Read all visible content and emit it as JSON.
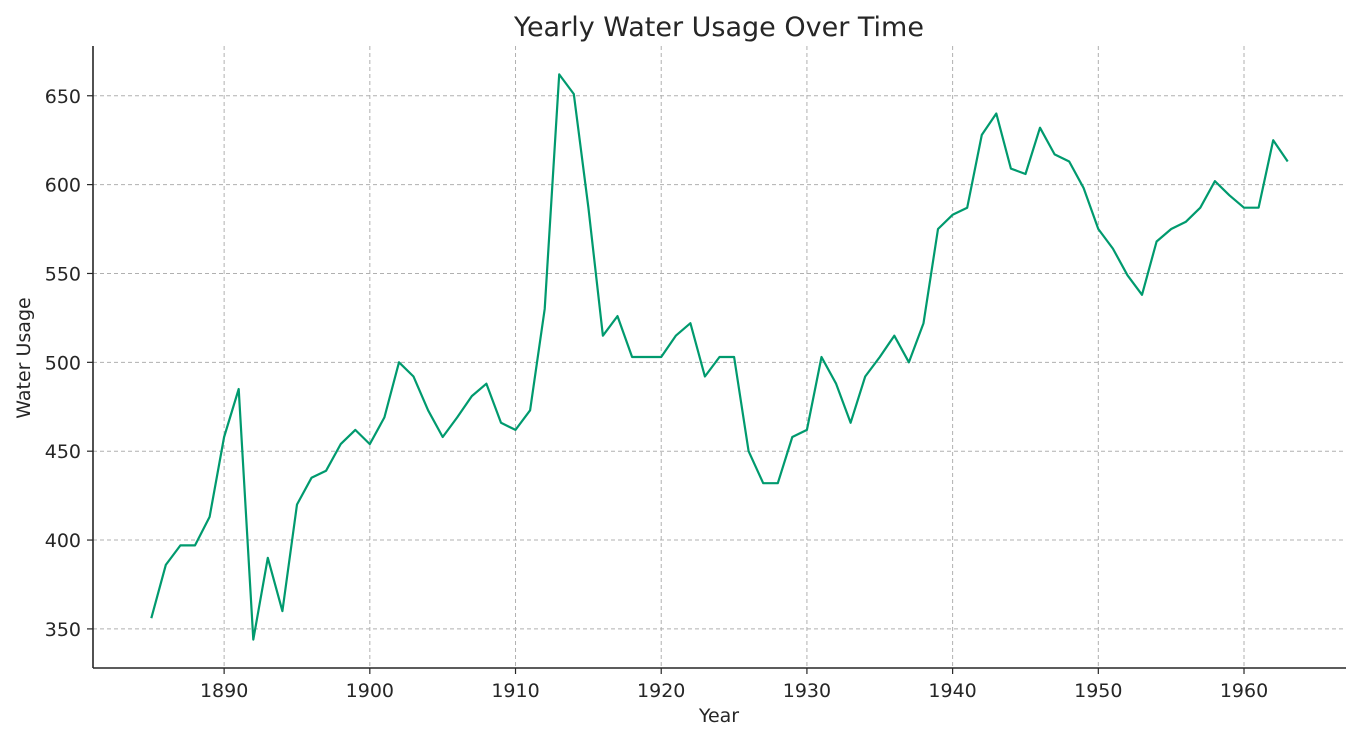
{
  "chart_data": {
    "type": "line",
    "title": "Yearly Water Usage Over Time",
    "xlabel": "Year",
    "ylabel": "Water Usage",
    "xlim": [
      1881,
      1967
    ],
    "ylim": [
      328,
      678
    ],
    "xticks": [
      1890,
      1900,
      1910,
      1920,
      1930,
      1940,
      1950,
      1960
    ],
    "yticks": [
      350,
      400,
      450,
      500,
      550,
      600,
      650
    ],
    "grid": true,
    "line_color": "#009a6e",
    "series": [
      {
        "name": "",
        "x": [
          1885,
          1886,
          1887,
          1888,
          1889,
          1890,
          1891,
          1892,
          1893,
          1894,
          1895,
          1896,
          1897,
          1898,
          1899,
          1900,
          1901,
          1902,
          1903,
          1904,
          1905,
          1906,
          1907,
          1908,
          1909,
          1910,
          1911,
          1912,
          1913,
          1914,
          1915,
          1916,
          1917,
          1918,
          1919,
          1920,
          1921,
          1922,
          1923,
          1924,
          1925,
          1926,
          1927,
          1928,
          1929,
          1930,
          1931,
          1932,
          1933,
          1934,
          1935,
          1936,
          1937,
          1938,
          1939,
          1940,
          1941,
          1942,
          1943,
          1944,
          1945,
          1946,
          1947,
          1948,
          1949,
          1950,
          1951,
          1952,
          1953,
          1954,
          1955,
          1956,
          1957,
          1958,
          1959,
          1960,
          1961,
          1962,
          1963
        ],
        "values": [
          356,
          386,
          397,
          397,
          413,
          458,
          485,
          344,
          390,
          360,
          420,
          435,
          439,
          454,
          462,
          454,
          469,
          500,
          492,
          473,
          458,
          469,
          481,
          488,
          466,
          462,
          473,
          530,
          662,
          651,
          587,
          515,
          526,
          503,
          503,
          503,
          515,
          522,
          492,
          503,
          503,
          450,
          432,
          432,
          458,
          462,
          503,
          488,
          466,
          492,
          503,
          515,
          500,
          522,
          575,
          583,
          587,
          628,
          640,
          609,
          606,
          632,
          617,
          613,
          598,
          575,
          564,
          549,
          538,
          568,
          575,
          579,
          587,
          602,
          594,
          587,
          587,
          625,
          613
        ]
      }
    ]
  }
}
